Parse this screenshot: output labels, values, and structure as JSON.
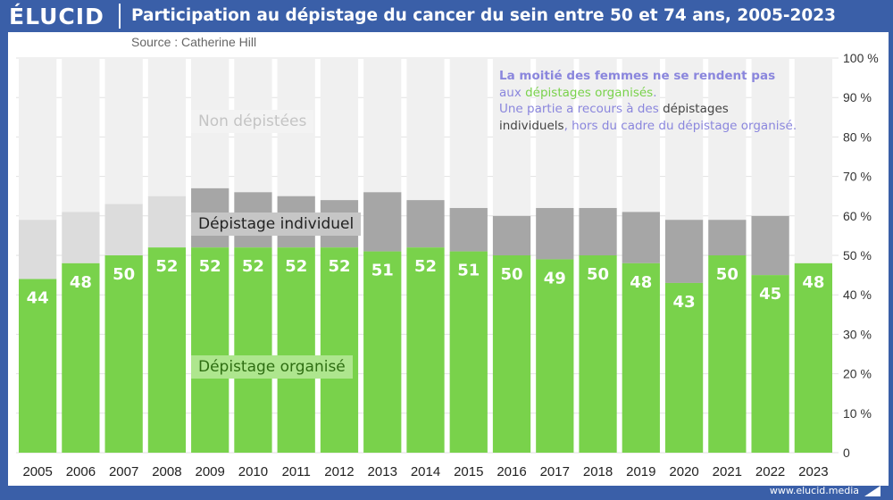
{
  "header": {
    "logo": "ÉLUCID",
    "title": "Participation au dépistage du cancer du sein entre 50 et 74 ans, 2005-2023",
    "source": "Source : Catherine Hill"
  },
  "footer": {
    "url": "www.elucid.media"
  },
  "labels": {
    "non_depistees": "Non dépistées",
    "individuel": "Dépistage individuel",
    "organise": "Dépistage organisé"
  },
  "note": {
    "line1": "La moitié des femmes ne se rendent pas",
    "line2a": "aux ",
    "line2b": "dépistages organisés",
    "line2c": ".",
    "line3a": "Une partie a recours à des ",
    "line3b": "dépistages",
    "line4a": "individuels",
    "line4b": ", hors du cadre du dépistage organisé."
  },
  "colors": {
    "frame": "#3a5fa8",
    "organise": "#79d24b",
    "individuel": "#a6a6a6",
    "non_depistees": "#f0f0f0",
    "pre2009_individuel": "#dcdcdc",
    "note_purple": "#8a86dd"
  },
  "chart_data": {
    "type": "bar",
    "stacked": true,
    "title": "Participation au dépistage du cancer du sein entre 50 et 74 ans, 2005-2023",
    "categories": [
      "2005",
      "2006",
      "2007",
      "2008",
      "2009",
      "2010",
      "2011",
      "2012",
      "2013",
      "2014",
      "2015",
      "2016",
      "2017",
      "2018",
      "2019",
      "2020",
      "2021",
      "2022",
      "2023"
    ],
    "series": [
      {
        "name": "Dépistage organisé",
        "values": [
          44,
          48,
          50,
          52,
          52,
          52,
          52,
          52,
          51,
          52,
          51,
          50,
          49,
          50,
          48,
          43,
          50,
          45,
          48
        ]
      },
      {
        "name": "Dépistage individuel",
        "values": [
          15,
          13,
          13,
          13,
          15,
          14,
          13,
          12,
          15,
          12,
          11,
          10,
          13,
          12,
          13,
          16,
          9,
          15,
          0
        ]
      },
      {
        "name": "Non dépistées",
        "values": [
          41,
          39,
          37,
          35,
          33,
          34,
          35,
          36,
          34,
          36,
          38,
          40,
          38,
          38,
          39,
          41,
          41,
          40,
          52
        ]
      }
    ],
    "data_labels": [
      44,
      48,
      50,
      52,
      52,
      52,
      52,
      52,
      51,
      52,
      51,
      50,
      49,
      50,
      48,
      43,
      50,
      45,
      48
    ],
    "ylim": [
      0,
      100
    ],
    "yticks": [
      "0",
      "10 %",
      "20 %",
      "30 %",
      "40 %",
      "50 %",
      "60 %",
      "70 %",
      "80 %",
      "90 %",
      "100 %"
    ],
    "xlabel": "",
    "ylabel": ""
  }
}
